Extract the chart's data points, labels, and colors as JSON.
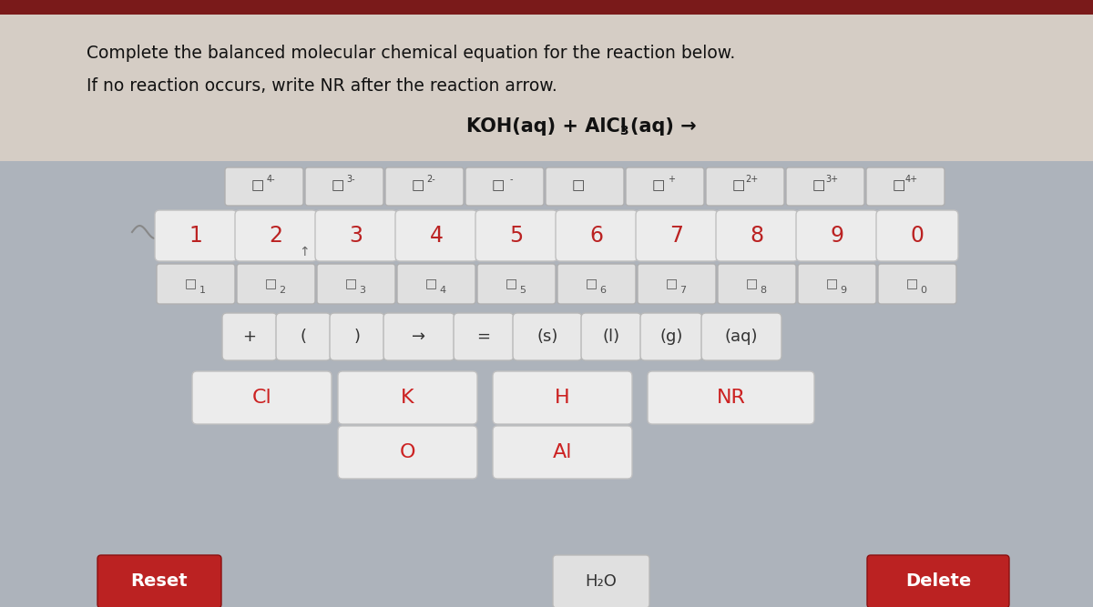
{
  "bg_gray": "#adb3bb",
  "bg_cream": "#d5cdc5",
  "dark_red_bar": "#7a1a1a",
  "instruction_line1": "Complete the balanced molecular chemical equation for the reaction below.",
  "instruction_line2": "If no reaction occurs, write NR after the reaction arrow.",
  "key_bg": "#e8e8e8",
  "key_bg_light": "#f0f0f0",
  "key_border": "#c0c0c0",
  "key_text": "#333333",
  "red_text": "#bb2222",
  "red_btn": "#bb2222",
  "white": "#ffffff",
  "number_row": [
    "1",
    "2",
    "3",
    "4",
    "5",
    "6",
    "7",
    "8",
    "9",
    "0"
  ],
  "sub_chars": [
    "1",
    "2",
    "3",
    "4",
    "5",
    "6",
    "7",
    "8",
    "9",
    "0"
  ],
  "sup_labels": [
    "4-",
    "3-",
    "2-",
    "-",
    "",
    "+",
    "2+",
    "3+",
    "4+"
  ],
  "sym_row": [
    "+",
    "(",
    ")",
    "→",
    "=",
    "(s)",
    "(l)",
    "(g)",
    "(aq)"
  ],
  "elem_row1": [
    "Cl",
    "K",
    "H",
    "NR"
  ],
  "elem_row2": [
    "O",
    "Al"
  ]
}
